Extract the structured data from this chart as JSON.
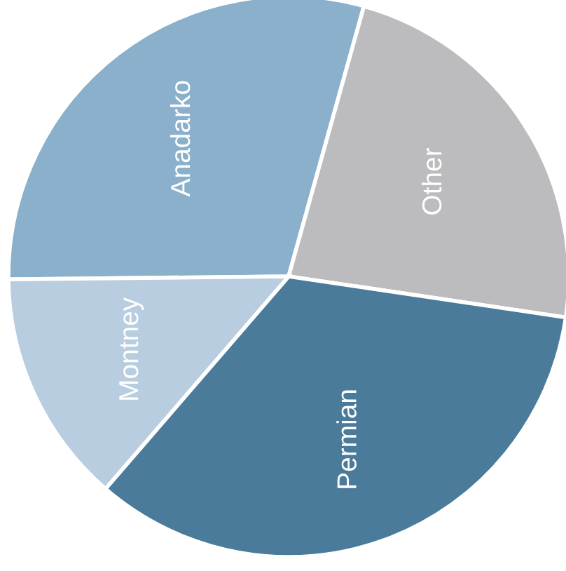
{
  "chart_data": {
    "type": "pie",
    "categories": [
      "Anadarko",
      "Other",
      "Permian",
      "Montney"
    ],
    "values": [
      29.5,
      23,
      34,
      13.5
    ],
    "colors": [
      "#8ab0cc",
      "#bcbcbe",
      "#4a7b9a",
      "#b8cde0"
    ]
  }
}
